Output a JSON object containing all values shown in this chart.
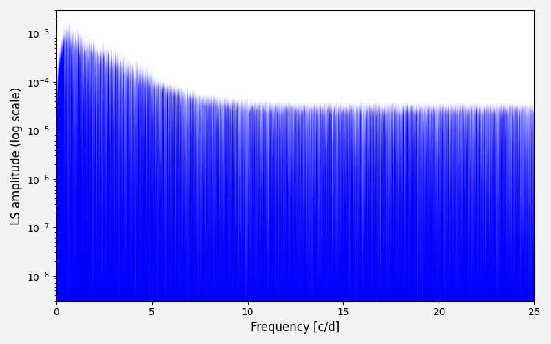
{
  "xlabel": "Frequency [c/d]",
  "ylabel": "LS amplitude (log scale)",
  "line_color": "#0000ff",
  "xlim": [
    0,
    25
  ],
  "ylim": [
    3e-09,
    0.003
  ],
  "figsize": [
    8.0,
    5.0
  ],
  "dpi": 100,
  "n_points": 15000,
  "freq_max": 25.0,
  "seed": 7,
  "background_color": "#f2f2f2"
}
